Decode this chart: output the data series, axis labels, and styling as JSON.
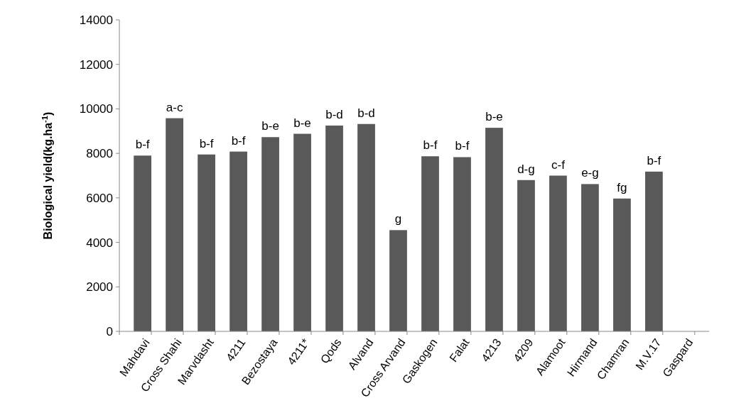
{
  "chart_data": {
    "type": "bar",
    "ylabel": "Biological yield(kg.ha$^{-1}$)",
    "categories": [
      "Mahdavi",
      "Cross Shahi",
      "Marvdasht",
      "4211",
      "Bezostaya",
      "4211*",
      "Qods",
      "Alvand",
      "Cross Arvand",
      "Gaskogen",
      "Falat",
      "4213",
      "4209",
      "Alamoot",
      "Hirmand",
      "Chamran",
      "M.V.17",
      "Gaspard"
    ],
    "values": [
      7900,
      9580,
      7950,
      8080,
      8730,
      8880,
      9250,
      9320,
      4550,
      7870,
      7830,
      9150,
      6800,
      7000,
      6620,
      5970,
      7180,
      null
    ],
    "value_labels": [
      "b-f",
      "a-c",
      "b-f",
      "b-f",
      "b-e",
      "b-e",
      "b-d",
      "b-d",
      "g",
      "b-f",
      "b-f",
      "b-e",
      "d-g",
      "c-f",
      "e-g",
      "fg",
      "b-f",
      null
    ],
    "color": "#595959",
    "ylim": [
      0,
      14000
    ],
    "yticks": [
      0,
      2000,
      4000,
      6000,
      8000,
      10000,
      12000,
      14000
    ],
    "grid": false
  }
}
